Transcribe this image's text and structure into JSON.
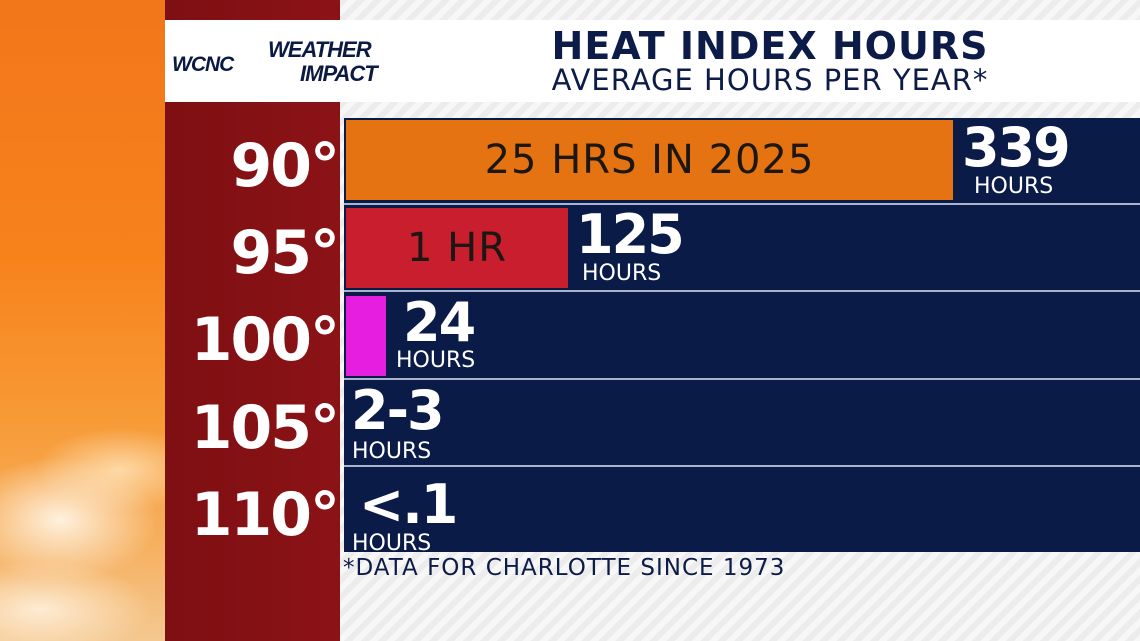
{
  "branding": {
    "station": "WCNC",
    "line1": "WEATHER",
    "line2": "IMPACT"
  },
  "header": {
    "title": "HEAT INDEX HOURS",
    "subtitle": "AVERAGE HOURS PER YEAR*"
  },
  "footnote": "*DATA FOR CHARLOTTE SINCE 1973",
  "colors": {
    "navy": "#0b1b48",
    "maroon": "#8b1316",
    "orange_bar": "#e57312",
    "red_bar": "#c81e2e",
    "magenta_bar": "#e61ee0"
  },
  "chart_data": {
    "type": "bar",
    "title": "HEAT INDEX HOURS",
    "subtitle": "AVERAGE HOURS PER YEAR*",
    "categories": [
      "90°",
      "95°",
      "100°",
      "105°",
      "110°"
    ],
    "series": [
      {
        "values": [
          339,
          125,
          24,
          "2-3",
          "<.1"
        ],
        "value_labels": [
          "339",
          "125",
          "24",
          "2-3",
          "<.1"
        ],
        "unit": "HOURS"
      },
      {
        "values": [
          25,
          1,
          null,
          null,
          null
        ],
        "bar_labels": [
          "25 HRS IN 2025",
          "1 HR",
          "",
          "",
          ""
        ],
        "colors": [
          "#e57312",
          "#c81e2e",
          "#e61ee0",
          "",
          ""
        ]
      }
    ],
    "annotation": "*DATA FOR CHARLOTTE SINCE 1973"
  }
}
